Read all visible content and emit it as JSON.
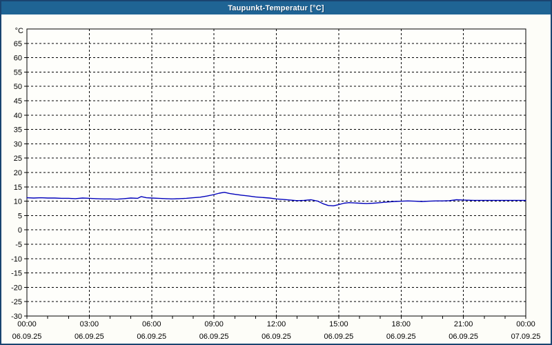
{
  "window": {
    "title": "Taupunkt-Temperatur [°C]"
  },
  "colors": {
    "titlebar_bg": "#1f6494",
    "window_border": "#1a4470",
    "plot_bg": "#fefefb",
    "grid": "#000000",
    "axis": "#000000",
    "text": "#000000",
    "line": "#0000bb"
  },
  "chart_data": {
    "type": "line",
    "title": "Taupunkt-Temperatur [°C]",
    "ylabel": "°C",
    "ylim": [
      -30,
      70
    ],
    "ytick_min": -30,
    "ytick_max": 65,
    "ytick_step": 5,
    "grid": "dashed",
    "x_axis": {
      "hours_min": 0,
      "hours_max": 24,
      "minor_tick_hours": 1,
      "major_ticks": [
        {
          "hour": 0,
          "time": "00:00",
          "date": "06.09.25"
        },
        {
          "hour": 3,
          "time": "03:00",
          "date": "06.09.25"
        },
        {
          "hour": 6,
          "time": "06:00",
          "date": "06.09.25"
        },
        {
          "hour": 9,
          "time": "09:00",
          "date": "06.09.25"
        },
        {
          "hour": 12,
          "time": "12:00",
          "date": "06.09.25"
        },
        {
          "hour": 15,
          "time": "15:00",
          "date": "06.09.25"
        },
        {
          "hour": 18,
          "time": "18:00",
          "date": "06.09.25"
        },
        {
          "hour": 21,
          "time": "21:00",
          "date": "06.09.25"
        },
        {
          "hour": 24,
          "time": "00:00",
          "date": "07.09.25"
        }
      ]
    },
    "series": [
      {
        "name": "Taupunkt-Temperatur",
        "color": "#0000bb",
        "points": [
          [
            0,
            11.2
          ],
          [
            0.33,
            11.1
          ],
          [
            0.67,
            11.2
          ],
          [
            1,
            11.1
          ],
          [
            1.33,
            11.1
          ],
          [
            1.67,
            11.0
          ],
          [
            2,
            11.0
          ],
          [
            2.33,
            10.9
          ],
          [
            2.67,
            11.1
          ],
          [
            3,
            11.0
          ],
          [
            3.33,
            10.9
          ],
          [
            3.67,
            10.8
          ],
          [
            4,
            10.8
          ],
          [
            4.33,
            10.7
          ],
          [
            4.67,
            10.9
          ],
          [
            5,
            11.1
          ],
          [
            5.33,
            11.0
          ],
          [
            5.5,
            11.6
          ],
          [
            5.75,
            11.2
          ],
          [
            6,
            11.1
          ],
          [
            6.33,
            11.0
          ],
          [
            6.67,
            10.9
          ],
          [
            7,
            10.8
          ],
          [
            7.33,
            10.9
          ],
          [
            7.67,
            11.0
          ],
          [
            8,
            11.2
          ],
          [
            8.33,
            11.4
          ],
          [
            8.67,
            11.8
          ],
          [
            9,
            12.3
          ],
          [
            9.25,
            12.8
          ],
          [
            9.5,
            13.1
          ],
          [
            9.75,
            12.7
          ],
          [
            10,
            12.4
          ],
          [
            10.33,
            12.1
          ],
          [
            10.67,
            11.8
          ],
          [
            11,
            11.5
          ],
          [
            11.33,
            11.3
          ],
          [
            11.67,
            11.1
          ],
          [
            12,
            10.8
          ],
          [
            12.33,
            10.6
          ],
          [
            12.67,
            10.4
          ],
          [
            13,
            10.2
          ],
          [
            13.33,
            10.3
          ],
          [
            13.67,
            10.5
          ],
          [
            14,
            10.0
          ],
          [
            14.25,
            9.1
          ],
          [
            14.5,
            8.5
          ],
          [
            14.75,
            8.4
          ],
          [
            15,
            8.8
          ],
          [
            15.25,
            9.3
          ],
          [
            15.5,
            9.5
          ],
          [
            15.75,
            9.4
          ],
          [
            16,
            9.3
          ],
          [
            16.33,
            9.2
          ],
          [
            16.67,
            9.3
          ],
          [
            17,
            9.5
          ],
          [
            17.33,
            9.7
          ],
          [
            17.67,
            9.9
          ],
          [
            18,
            10.0
          ],
          [
            18.33,
            10.1
          ],
          [
            18.67,
            10.0
          ],
          [
            19,
            9.9
          ],
          [
            19.33,
            10.0
          ],
          [
            19.67,
            10.1
          ],
          [
            20,
            10.1
          ],
          [
            20.33,
            10.2
          ],
          [
            20.67,
            10.5
          ],
          [
            21,
            10.4
          ],
          [
            21.5,
            10.3
          ],
          [
            22,
            10.3
          ],
          [
            22.5,
            10.3
          ],
          [
            23,
            10.3
          ],
          [
            23.5,
            10.3
          ],
          [
            24,
            10.3
          ]
        ]
      }
    ]
  }
}
